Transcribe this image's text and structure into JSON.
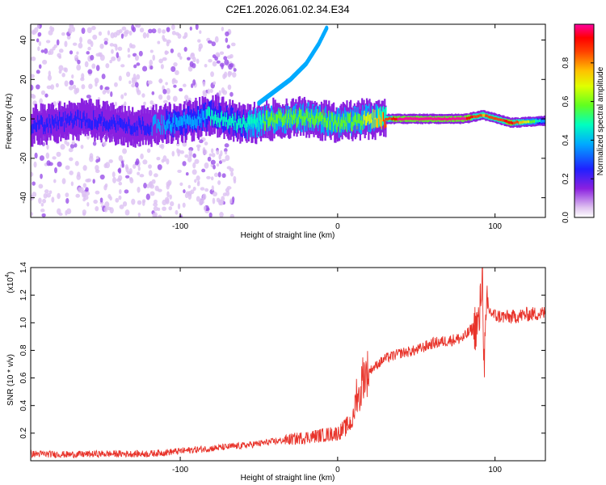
{
  "figure": {
    "title": "C2E1.2026.061.02.34.E34"
  },
  "chart_data": [
    {
      "type": "heatmap",
      "name": "spectrogram",
      "xlabel": "Height of straight line (km)",
      "ylabel": "Frequency (Hz)",
      "xlim": [
        -195,
        132
      ],
      "ylim": [
        -50,
        48
      ],
      "xticks": [
        -100,
        0,
        100
      ],
      "yticks": [
        -40,
        -20,
        0,
        20,
        40
      ],
      "colorbar": {
        "label": "Normalized spectral amplitude",
        "range": [
          0.0,
          1.0
        ],
        "ticks": [
          0.0,
          0.2,
          0.4,
          0.6,
          0.8
        ]
      },
      "ridge": [
        {
          "x": -190,
          "y": -3,
          "amp": 0.18
        },
        {
          "x": -160,
          "y": 0,
          "amp": 0.2
        },
        {
          "x": -130,
          "y": -4,
          "amp": 0.22
        },
        {
          "x": -100,
          "y": -2,
          "amp": 0.3
        },
        {
          "x": -80,
          "y": 2,
          "amp": 0.4
        },
        {
          "x": -60,
          "y": -3,
          "amp": 0.45
        },
        {
          "x": -40,
          "y": 0,
          "amp": 0.5
        },
        {
          "x": -20,
          "y": 1,
          "amp": 0.55
        },
        {
          "x": 0,
          "y": -2,
          "amp": 0.5
        },
        {
          "x": 20,
          "y": 0,
          "amp": 0.6
        },
        {
          "x": 40,
          "y": 0,
          "amp": 0.98
        },
        {
          "x": 60,
          "y": 0,
          "amp": 1.0
        },
        {
          "x": 80,
          "y": 0,
          "amp": 0.95
        },
        {
          "x": 92,
          "y": 2,
          "amp": 0.75
        },
        {
          "x": 110,
          "y": -2,
          "amp": 0.9
        },
        {
          "x": 130,
          "y": -1,
          "amp": 0.35
        }
      ],
      "branch": [
        {
          "x": -50,
          "y": 8
        },
        {
          "x": -40,
          "y": 14
        },
        {
          "x": -30,
          "y": 20
        },
        {
          "x": -20,
          "y": 28
        },
        {
          "x": -12,
          "y": 38
        },
        {
          "x": -7,
          "y": 46
        }
      ]
    },
    {
      "type": "line",
      "name": "snr",
      "xlabel": "Height of straight line (km)",
      "ylabel": "SNR (10 * v/v)",
      "yscale_note": "(x10",
      "yscale_exp": "4",
      "xlim": [
        -195,
        132
      ],
      "ylim": [
        0,
        14000
      ],
      "xticks": [
        -100,
        0,
        100
      ],
      "yticks": [
        2000,
        4000,
        6000,
        8000,
        10000,
        12000,
        14000
      ],
      "ytick_labels": [
        "0.2",
        "0.4",
        "0.6",
        "0.8",
        "1.0",
        "1.2",
        "1.4"
      ],
      "series": [
        {
          "name": "SNR",
          "color": "#e8332a",
          "x": [
            -195,
            -170,
            -150,
            -120,
            -100,
            -80,
            -60,
            -40,
            -20,
            0,
            5,
            10,
            12,
            14,
            16,
            18,
            20,
            30,
            40,
            50,
            60,
            70,
            80,
            85,
            90,
            92,
            93,
            95,
            100,
            110,
            120,
            132
          ],
          "y": [
            500,
            450,
            500,
            500,
            700,
            900,
            1100,
            1400,
            1700,
            2000,
            2400,
            3000,
            5000,
            4500,
            6200,
            6300,
            6500,
            7400,
            7800,
            8000,
            8500,
            8700,
            8900,
            9500,
            10000,
            14000,
            7000,
            11000,
            10500,
            10400,
            10600,
            10700
          ]
        }
      ]
    }
  ]
}
